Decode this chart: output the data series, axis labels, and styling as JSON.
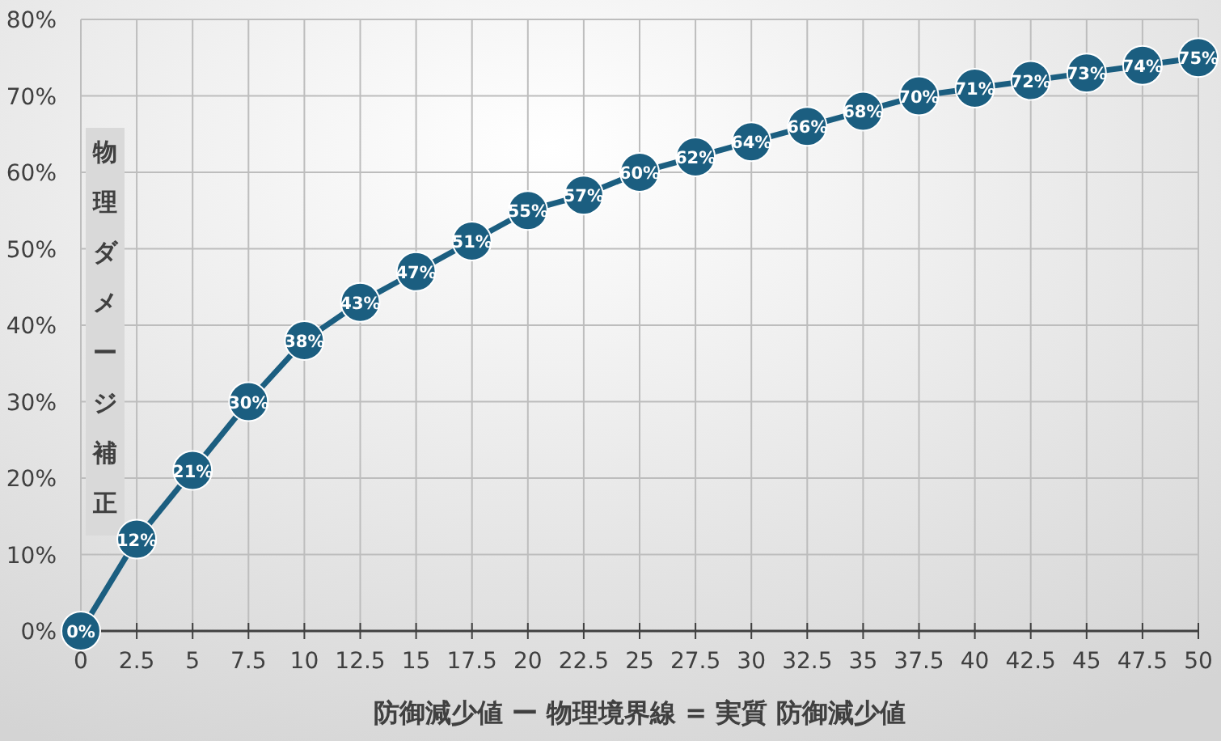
{
  "chart_data": {
    "type": "line",
    "xlabel": "防御減少値 ー 物理境界線 = 実質 防御減少値",
    "ylabel": "物理ダメージ補正",
    "x": [
      0,
      2.5,
      5,
      7.5,
      10,
      12.5,
      15,
      17.5,
      20,
      22.5,
      25,
      27.5,
      30,
      32.5,
      35,
      37.5,
      40,
      42.5,
      45,
      47.5,
      50
    ],
    "series": [
      {
        "color": "#1b5e80",
        "values": [
          0,
          12,
          21,
          30,
          38,
          43,
          47,
          51,
          55,
          57,
          60,
          62,
          64,
          66,
          68,
          70,
          71,
          72,
          73,
          74,
          75
        ],
        "value_labels": [
          "0%",
          "12%",
          "21%",
          "30%",
          "38%",
          "43%",
          "47%",
          "51%",
          "55%",
          "57%",
          "60%",
          "62%",
          "64%",
          "66%",
          "68%",
          "70%",
          "71%",
          "72%",
          "73%",
          "74%",
          "75%"
        ]
      }
    ],
    "xlim": [
      0,
      50
    ],
    "xticks": [
      0,
      2.5,
      5,
      7.5,
      10,
      12.5,
      15,
      17.5,
      20,
      22.5,
      25,
      27.5,
      30,
      32.5,
      35,
      37.5,
      40,
      42.5,
      45,
      47.5,
      50
    ],
    "ylim": [
      0,
      80
    ],
    "yticks": [
      {
        "value": 0,
        "label": "0%"
      },
      {
        "value": 10,
        "label": "10%"
      },
      {
        "value": 20,
        "label": "20%"
      },
      {
        "value": 30,
        "label": "30%"
      },
      {
        "value": 40,
        "label": "40%"
      },
      {
        "value": 50,
        "label": "50%"
      },
      {
        "value": 60,
        "label": "60%"
      },
      {
        "value": 70,
        "label": "70%"
      },
      {
        "value": 80,
        "label": "80%"
      }
    ],
    "grid": true,
    "marker": "circle",
    "line_style": "solid"
  }
}
